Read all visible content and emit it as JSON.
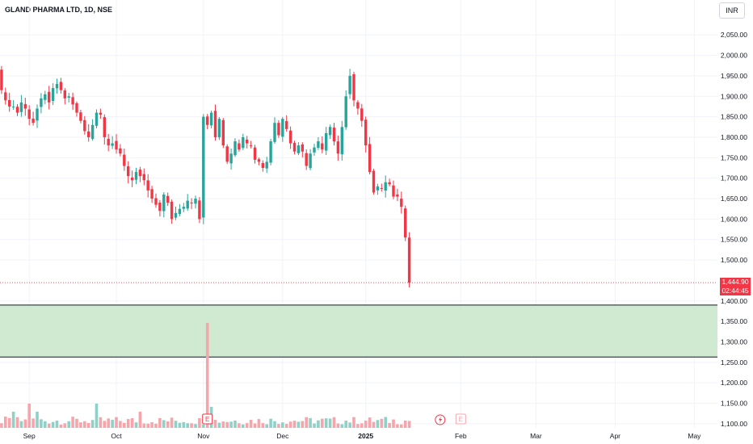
{
  "header": {
    "title": "GLAND PHARMA LTD, 1D, NSE",
    "currency": "INR"
  },
  "price_badge": {
    "price": "1,444.90",
    "countdown": "02:44:45"
  },
  "events": {
    "earnings_label": "E",
    "upcoming_label": "E"
  },
  "colors": {
    "up": "#26a69a",
    "down": "#f23645",
    "zone_fill": "#c8e6c9",
    "zone_border": "#131722",
    "vol_up": "#8fd0c7",
    "vol_down": "#f7a5ab"
  },
  "chart_data": {
    "type": "candlestick",
    "title": "GLAND PHARMA LTD, 1D, NSE",
    "ylim": [
      1090,
      2080
    ],
    "y_ticks": [
      2050,
      2000,
      1950,
      1900,
      1850,
      1800,
      1750,
      1700,
      1650,
      1600,
      1550,
      1500,
      1400,
      1350,
      1300,
      1250,
      1200,
      1150,
      1100
    ],
    "y_tick_labels": [
      "2,050.00",
      "2,000.00",
      "1,950.00",
      "1,900.00",
      "1,850.00",
      "1,800.00",
      "1,750.00",
      "1,700.00",
      "1,650.00",
      "1,600.00",
      "1,550.00",
      "1,500.00",
      "1,400.00",
      "1,350.00",
      "1,300.00",
      "1,250.00",
      "1,200.00",
      "1,150.00",
      "1,100.00"
    ],
    "x_labels": [
      {
        "label": "Sep",
        "index": 8
      },
      {
        "label": "Oct",
        "index": 30
      },
      {
        "label": "Nov",
        "index": 52
      },
      {
        "label": "Dec",
        "index": 72
      },
      {
        "label": "2025",
        "index": 93
      },
      {
        "label": "Feb",
        "index": 117
      },
      {
        "label": "Mar",
        "index": 136
      },
      {
        "label": "Apr",
        "index": 156
      },
      {
        "label": "May",
        "index": 176
      }
    ],
    "last_price": 1444.9,
    "demand_zone": [
      1263,
      1390
    ],
    "earnings_index": 53,
    "upcoming_earnings_index": 117,
    "split_index": 112,
    "closes": [
      1960,
      1915,
      1890,
      1875,
      1875,
      1860,
      1885,
      1870,
      1845,
      1835,
      1870,
      1895,
      1905,
      1885,
      1920,
      1930,
      1915,
      1895,
      1900,
      1880,
      1860,
      1840,
      1815,
      1800,
      1830,
      1860,
      1855,
      1800,
      1780,
      1785,
      1770,
      1760,
      1730,
      1705,
      1695,
      1715,
      1705,
      1695,
      1670,
      1650,
      1635,
      1620,
      1660,
      1640,
      1600,
      1615,
      1625,
      1630,
      1645,
      1640,
      1650,
      1600,
      1850,
      1830,
      1860,
      1800,
      1845,
      1780,
      1740,
      1760,
      1790,
      1770,
      1800,
      1785,
      1780,
      1745,
      1740,
      1725,
      1740,
      1790,
      1835,
      1805,
      1845,
      1820,
      1785,
      1765,
      1780,
      1765,
      1730,
      1760,
      1775,
      1790,
      1770,
      1810,
      1825,
      1790,
      1760,
      1825,
      1900,
      1950,
      1890,
      1870,
      1840,
      1780,
      1715,
      1665,
      1680,
      1675,
      1690,
      1685,
      1655,
      1655,
      1630,
      1555,
      1444.9
    ]
  }
}
